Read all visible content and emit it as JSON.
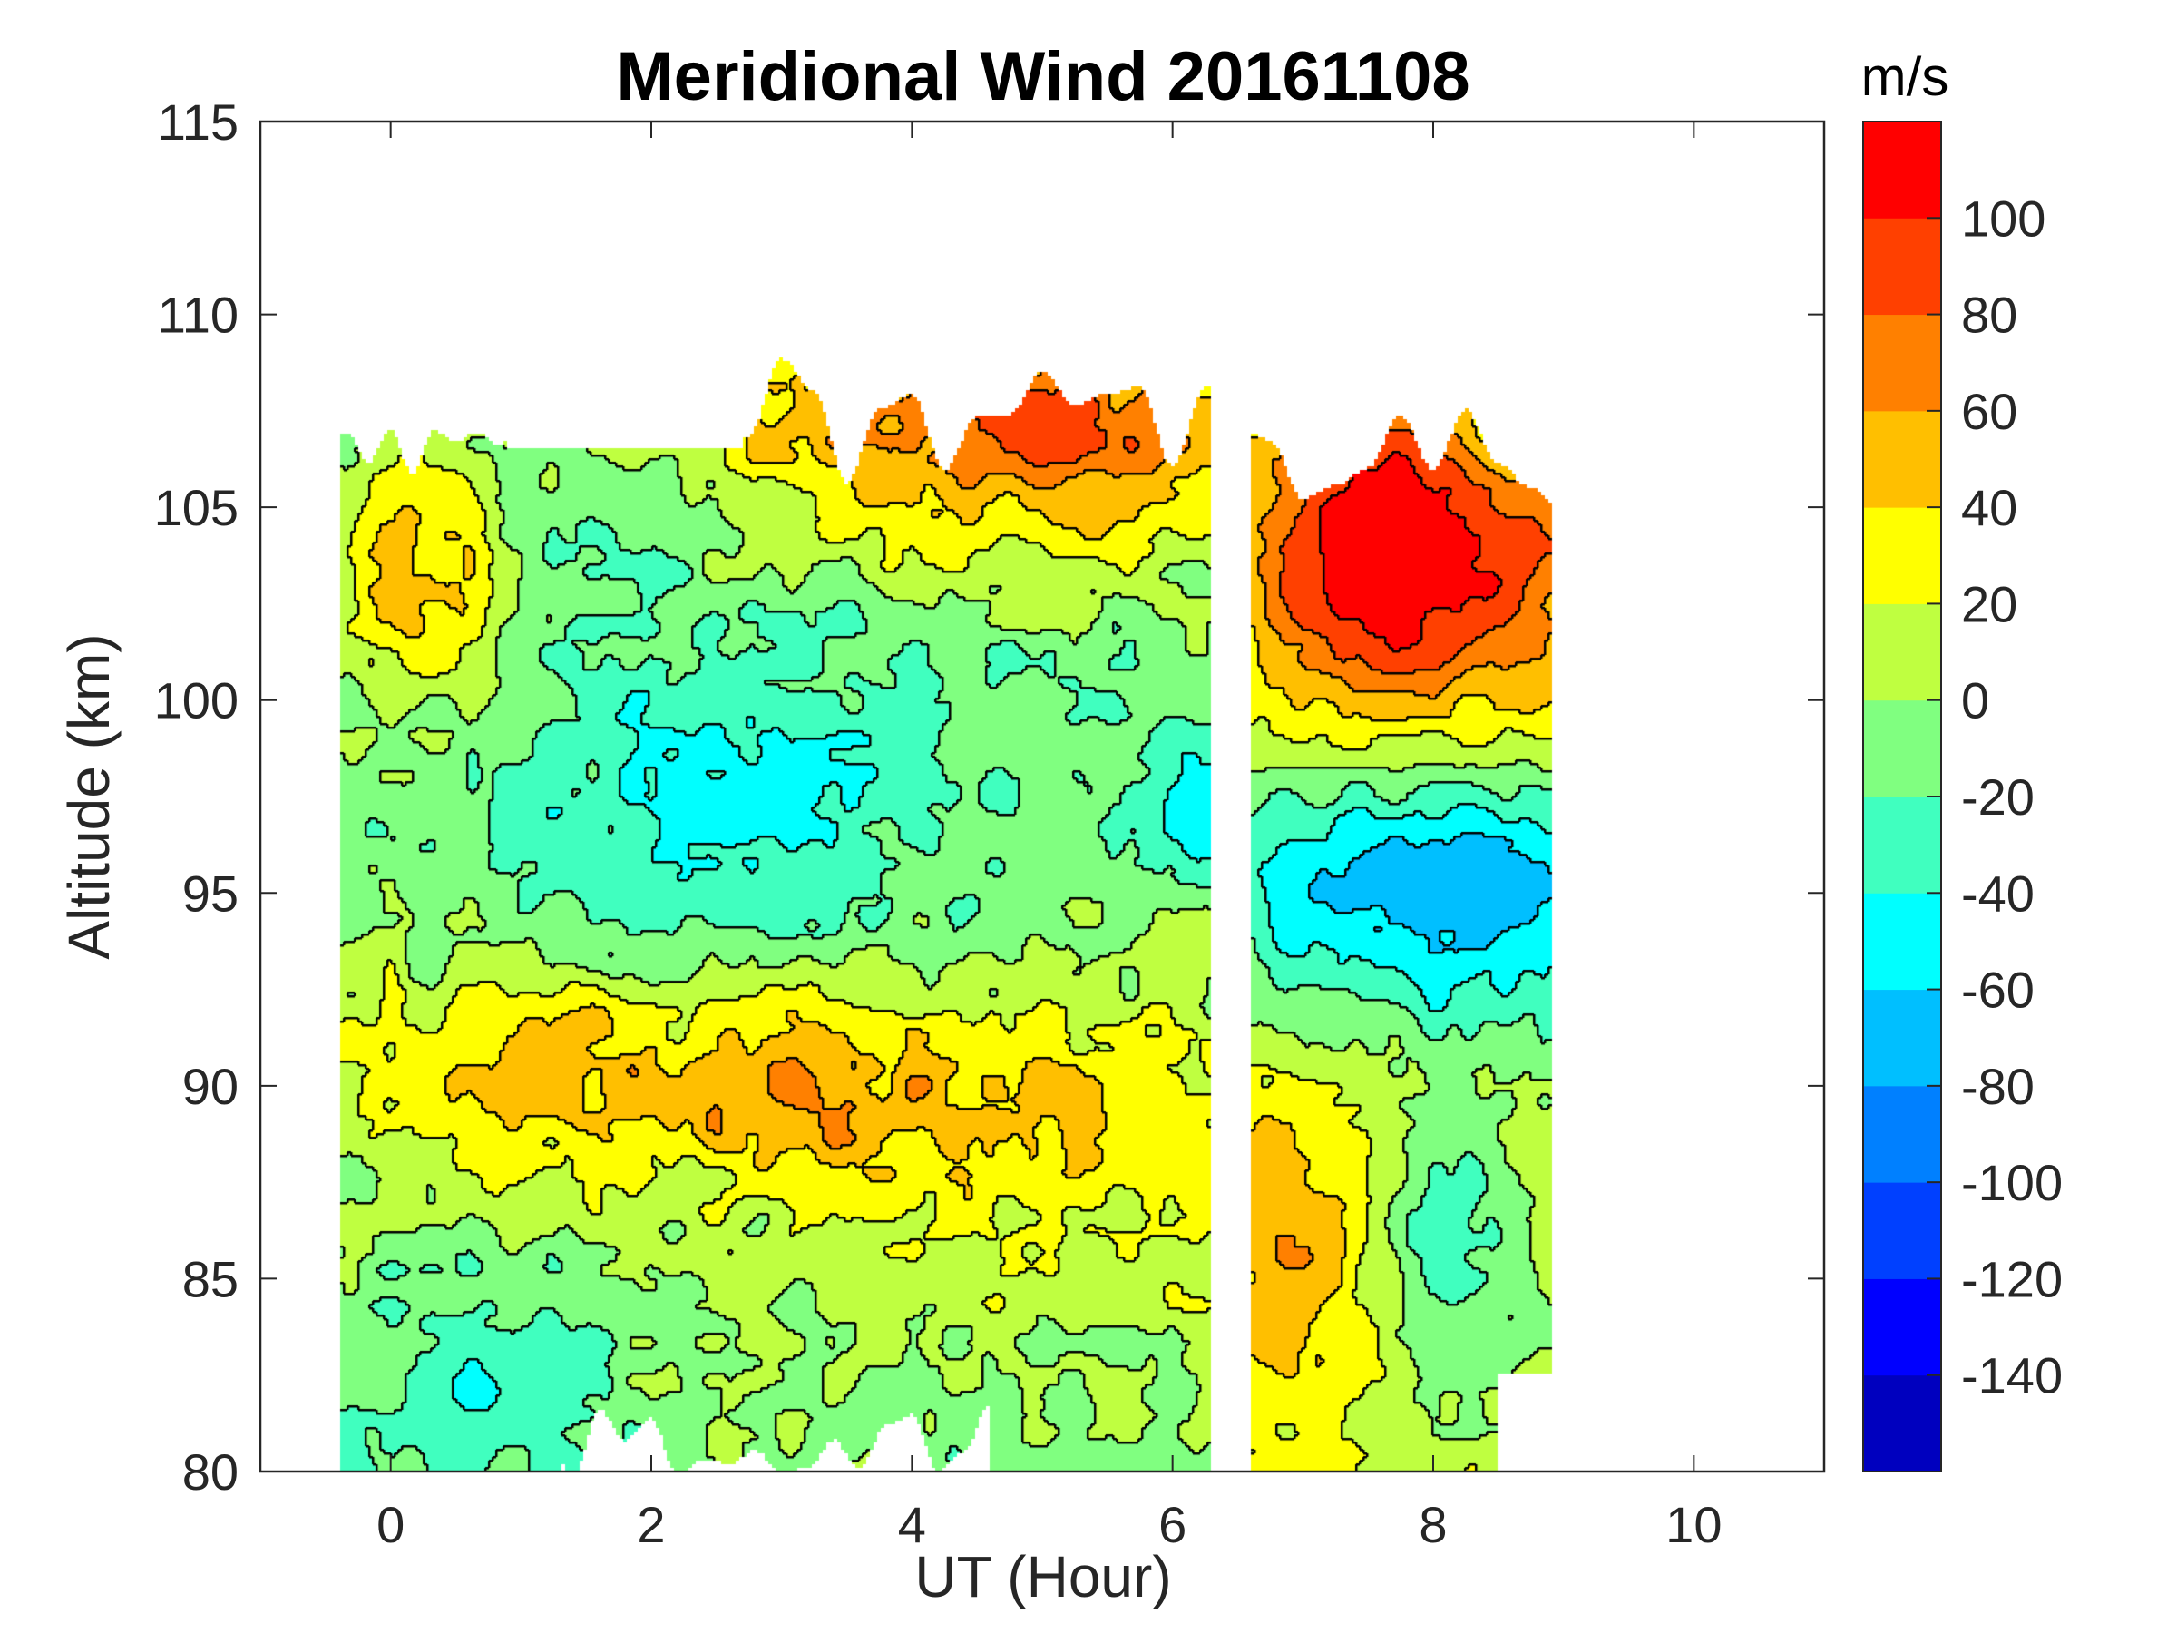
{
  "chart_data": {
    "type": "heatmap",
    "subtype": "filled-contour",
    "title": "Meridional Wind 20161108",
    "xlabel": "UT (Hour)",
    "ylabel": "Altitude (km)",
    "xlim": [
      -1,
      11
    ],
    "ylim": [
      80,
      115
    ],
    "xticks": [
      0,
      2,
      4,
      6,
      8,
      10
    ],
    "xtick_labels": [
      "0",
      "2",
      "4",
      "6",
      "8",
      "10"
    ],
    "yticks": [
      80,
      85,
      90,
      95,
      100,
      105,
      110,
      115
    ],
    "ytick_labels": [
      "80",
      "85",
      "90",
      "95",
      "100",
      "105",
      "110",
      "115"
    ],
    "grid": false,
    "colorbar": {
      "label": "m/s",
      "placement": "right",
      "range": [
        -160,
        120
      ],
      "ticks": [
        100,
        80,
        60,
        40,
        20,
        0,
        -20,
        -40,
        -60,
        -80,
        -100,
        -120,
        -140
      ],
      "tick_labels": [
        "100",
        "80",
        "60",
        "40",
        "20",
        "0",
        "-20",
        "-40",
        "-60",
        "-80",
        "-100",
        "-120",
        "-140"
      ],
      "levels": [
        -160,
        -140,
        -120,
        -100,
        -80,
        -60,
        -40,
        -20,
        0,
        20,
        40,
        60,
        80,
        100,
        120
      ],
      "colors": [
        "#0000bf",
        "#0000ff",
        "#0040ff",
        "#0080ff",
        "#00bfff",
        "#00ffff",
        "#40ffbf",
        "#80ff80",
        "#bfff40",
        "#ffff00",
        "#ffbf00",
        "#ff8000",
        "#ff4000",
        "#ff0000"
      ]
    },
    "data_segments": [
      {
        "ut_start": -0.4,
        "ut_end": 6.3,
        "alt_min": 80,
        "alt_max": 109.5
      },
      {
        "ut_start": 6.6,
        "ut_end": 8.9,
        "alt_min": 80,
        "alt_max": 108.5
      }
    ],
    "features": [
      {
        "region": "eastward band ~90 km, UT -0.4 to 6.3",
        "value_range": [
          20,
          80
        ],
        "peak_ut": 3.2,
        "peak_alt": 89.5,
        "peak_value": 80
      },
      {
        "region": "southward band ~95-100 km, UT 1.5 to 4",
        "value_range": [
          -60,
          -20
        ]
      },
      {
        "region": "northward upper layer >104 km, UT 3 to 6.3",
        "value_range": [
          40,
          100
        ]
      },
      {
        "region": "strong northward 100-107 km, UT 6.6 to 8.9",
        "value_range": [
          60,
          120
        ],
        "peak_ut": 8.0,
        "peak_alt": 104,
        "peak_value": 110
      },
      {
        "region": "southward jet 92-98 km, UT 7 to 8.9",
        "value_range": [
          -80,
          -40
        ],
        "peak_value": -75
      },
      {
        "region": "upper-left northward patch 100-106 km, UT -0.3 to 0.6",
        "value_range": [
          40,
          80
        ]
      }
    ]
  }
}
